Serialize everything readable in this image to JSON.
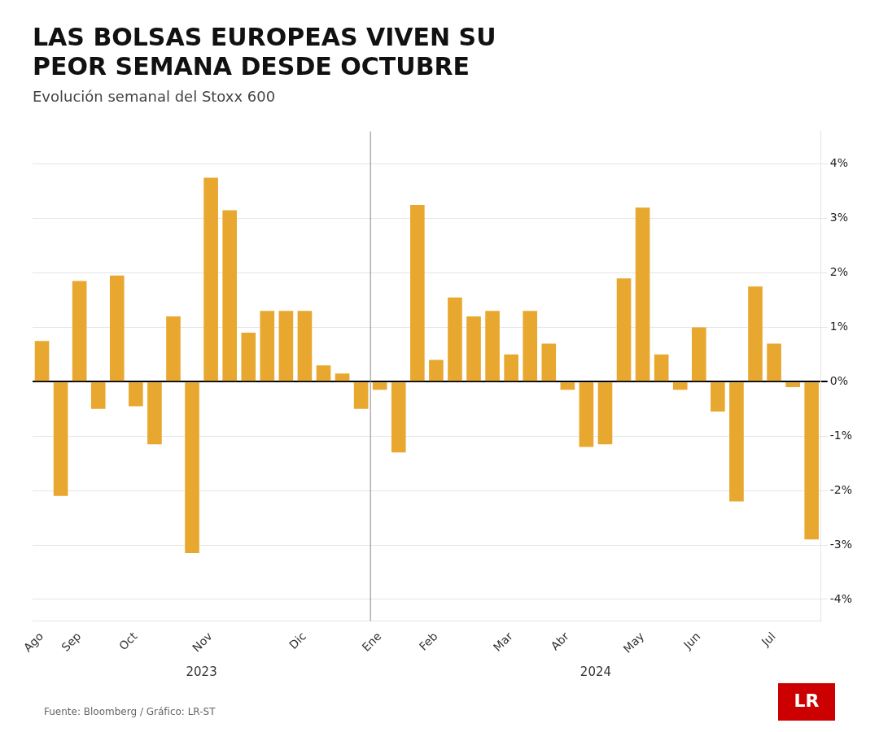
{
  "chart_data": {
    "type": "bar",
    "title": [
      "LAS BOLSAS EUROPEAS VIVEN SU",
      "PEOR SEMANA DESDE OCTUBRE"
    ],
    "subtitle": "Evolución semanal del Stoxx 600",
    "source": "Fuente: Bloomberg / Gráfico: LR-ST",
    "logo": "LR",
    "categories": [
      "Ago",
      null,
      "Sep",
      null,
      null,
      "Oct",
      null,
      null,
      null,
      "Nov",
      null,
      null,
      null,
      null,
      "Dic",
      null,
      null,
      null,
      "Ene",
      null,
      null,
      "Feb",
      null,
      null,
      null,
      "Mar",
      null,
      null,
      "Abr",
      null,
      null,
      null,
      "May",
      null,
      null,
      "Jun",
      null,
      null,
      null,
      "Jul",
      null,
      null
    ],
    "values": [
      0.75,
      -2.1,
      1.85,
      -0.5,
      1.95,
      -0.45,
      -1.15,
      1.2,
      -3.15,
      3.75,
      3.15,
      0.9,
      1.3,
      1.3,
      1.3,
      0.3,
      0.15,
      -0.5,
      -0.15,
      -1.3,
      3.25,
      0.4,
      1.55,
      1.2,
      1.3,
      0.5,
      1.3,
      0.7,
      -0.15,
      -1.2,
      -1.15,
      1.9,
      3.2,
      0.5,
      -0.15,
      1.0,
      -0.55,
      -2.2,
      1.75,
      0.7,
      -0.1,
      -2.9
    ],
    "color": "#E8A830",
    "ylim": [
      -4.4,
      4.6
    ],
    "yticks": [
      {
        "value": -4,
        "label": "-4%"
      },
      {
        "value": -3,
        "label": "-3%"
      },
      {
        "value": -2,
        "label": "-2%"
      },
      {
        "value": -1,
        "label": "-1%"
      },
      {
        "value": 0,
        "label": "0%"
      },
      {
        "value": 1,
        "label": "1%"
      },
      {
        "value": 2,
        "label": "2%"
      },
      {
        "value": 3,
        "label": "3%"
      },
      {
        "value": 4,
        "label": "4%"
      }
    ],
    "grid": true,
    "annotations": [
      {
        "text": "2023",
        "categories": [
          "Ago",
          "Sep",
          "Oct",
          "Nov",
          "Dic"
        ]
      },
      {
        "text": "2024",
        "categories": [
          "Ene",
          "Feb",
          "Mar",
          "Abr",
          "May",
          "Jun",
          "Jul"
        ]
      }
    ]
  }
}
